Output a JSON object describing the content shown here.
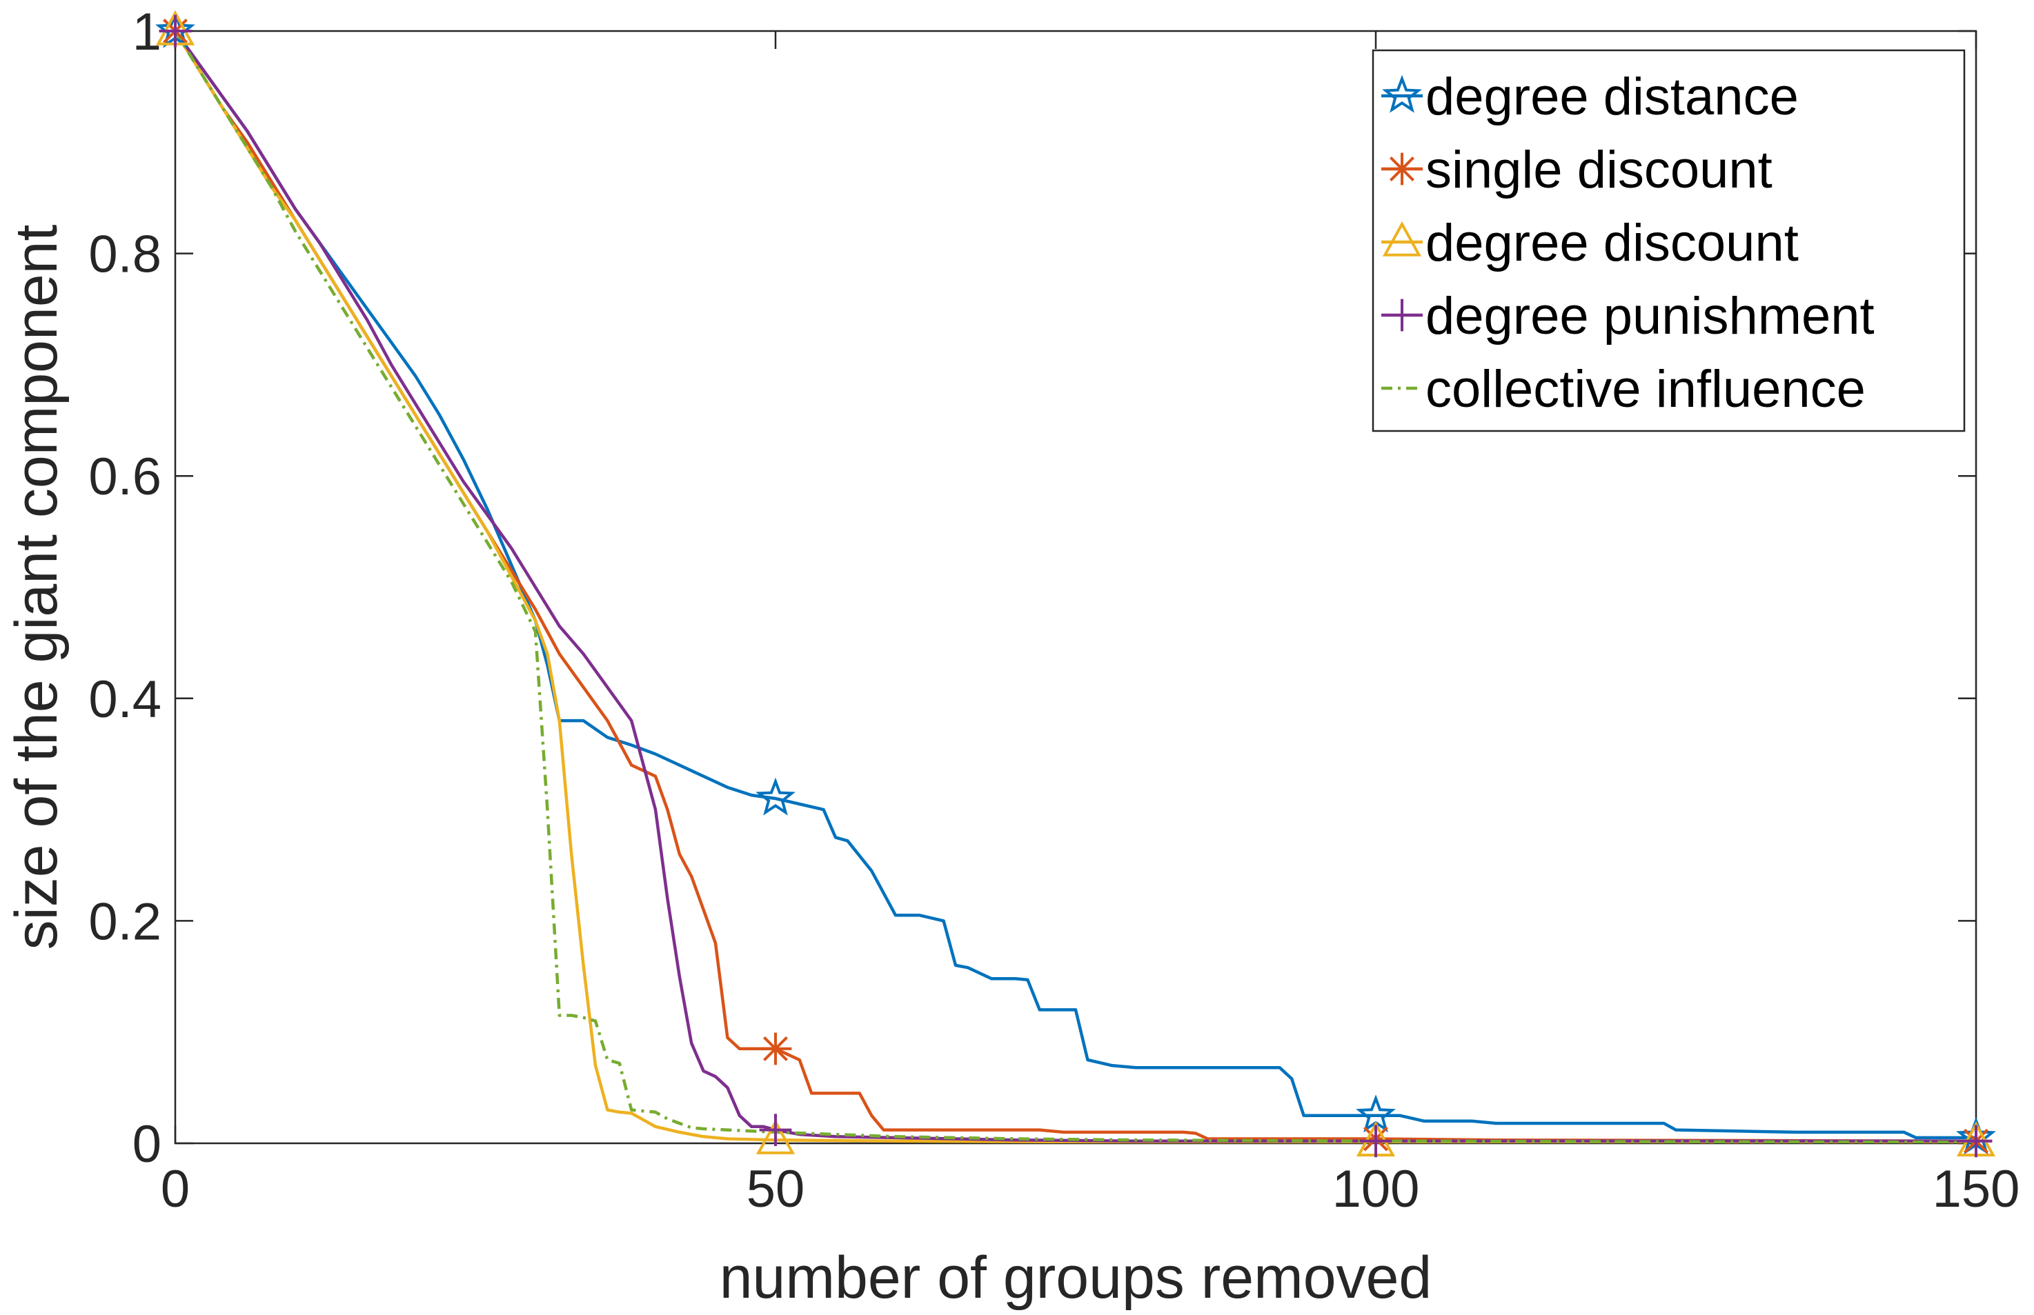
{
  "chart_data": {
    "type": "line",
    "xlabel": "number of groups removed",
    "ylabel": "size of the giant component",
    "xlim": [
      0,
      150
    ],
    "ylim": [
      0,
      1
    ],
    "xticks": [
      0,
      50,
      100,
      150
    ],
    "xtick_labels": [
      "0",
      "50",
      "100",
      "150"
    ],
    "yticks": [
      0,
      0.2,
      0.4,
      0.6,
      0.8,
      1
    ],
    "ytick_labels": [
      "0",
      "0.2",
      "0.4",
      "0.6",
      "0.8",
      "1"
    ],
    "grid": false,
    "legend_position": "top-right",
    "series": [
      {
        "name": "degree distance",
        "color": "#0072BD",
        "marker": "star",
        "line_style": "solid",
        "marker_x": [
          0,
          50,
          100,
          150
        ],
        "x": [
          0,
          2,
          4,
          6,
          8,
          10,
          12,
          14,
          16,
          18,
          20,
          22,
          24,
          26,
          28,
          30,
          31,
          32,
          34,
          36,
          38,
          40,
          42,
          44,
          46,
          48,
          50,
          52,
          54,
          55,
          56,
          58,
          60,
          62,
          64,
          65,
          66,
          68,
          70,
          71,
          72,
          74,
          75,
          76,
          78,
          80,
          82,
          84,
          86,
          88,
          90,
          92,
          93,
          94,
          96,
          98,
          100,
          102,
          104,
          106,
          108,
          110,
          115,
          120,
          124,
          125,
          130,
          135,
          140,
          144,
          145,
          150
        ],
        "y": [
          1.0,
          0.97,
          0.94,
          0.91,
          0.875,
          0.84,
          0.81,
          0.78,
          0.75,
          0.72,
          0.69,
          0.655,
          0.615,
          0.57,
          0.52,
          0.47,
          0.43,
          0.38,
          0.38,
          0.365,
          0.358,
          0.35,
          0.34,
          0.33,
          0.32,
          0.313,
          0.31,
          0.305,
          0.3,
          0.275,
          0.272,
          0.245,
          0.205,
          0.205,
          0.2,
          0.16,
          0.158,
          0.148,
          0.148,
          0.147,
          0.12,
          0.12,
          0.12,
          0.075,
          0.07,
          0.068,
          0.068,
          0.068,
          0.068,
          0.068,
          0.068,
          0.068,
          0.058,
          0.025,
          0.025,
          0.025,
          0.025,
          0.025,
          0.02,
          0.02,
          0.02,
          0.018,
          0.018,
          0.018,
          0.018,
          0.012,
          0.011,
          0.01,
          0.01,
          0.01,
          0.005,
          0.005
        ]
      },
      {
        "name": "single discount",
        "color": "#D95319",
        "marker": "asterisk",
        "line_style": "solid",
        "marker_x": [
          0,
          50,
          100,
          150
        ],
        "x": [
          0,
          2,
          4,
          6,
          8,
          10,
          12,
          14,
          16,
          18,
          20,
          22,
          24,
          26,
          28,
          30,
          31,
          32,
          34,
          36,
          38,
          40,
          41,
          42,
          43,
          44,
          45,
          46,
          47,
          48,
          49,
          50,
          52,
          53,
          54,
          56,
          57,
          58,
          59,
          60,
          62,
          64,
          66,
          68,
          70,
          72,
          74,
          76,
          78,
          80,
          82,
          84,
          85,
          86,
          90,
          100,
          110,
          150
        ],
        "y": [
          1.0,
          0.965,
          0.93,
          0.9,
          0.865,
          0.83,
          0.795,
          0.76,
          0.725,
          0.69,
          0.655,
          0.62,
          0.585,
          0.55,
          0.515,
          0.48,
          0.46,
          0.44,
          0.41,
          0.38,
          0.34,
          0.33,
          0.3,
          0.26,
          0.24,
          0.21,
          0.18,
          0.095,
          0.085,
          0.085,
          0.085,
          0.085,
          0.075,
          0.045,
          0.045,
          0.045,
          0.045,
          0.025,
          0.012,
          0.012,
          0.012,
          0.012,
          0.012,
          0.012,
          0.012,
          0.012,
          0.01,
          0.01,
          0.01,
          0.01,
          0.01,
          0.01,
          0.009,
          0.004,
          0.004,
          0.004,
          0.003,
          0.002
        ]
      },
      {
        "name": "degree discount",
        "color": "#EDB120",
        "marker": "triangle",
        "line_style": "solid",
        "marker_x": [
          0,
          50,
          100,
          150
        ],
        "x": [
          0,
          2,
          4,
          6,
          8,
          10,
          12,
          14,
          16,
          18,
          20,
          22,
          24,
          26,
          28,
          30,
          31,
          32,
          33,
          34,
          35,
          36,
          37,
          38,
          40,
          42,
          44,
          46,
          50,
          60,
          80,
          100,
          150
        ],
        "y": [
          1.0,
          0.965,
          0.93,
          0.895,
          0.86,
          0.83,
          0.795,
          0.76,
          0.725,
          0.69,
          0.655,
          0.62,
          0.585,
          0.55,
          0.51,
          0.47,
          0.44,
          0.38,
          0.26,
          0.16,
          0.07,
          0.03,
          0.028,
          0.027,
          0.015,
          0.01,
          0.006,
          0.004,
          0.003,
          0.002,
          0.001,
          0.001,
          0.001
        ]
      },
      {
        "name": "degree punishment",
        "color": "#7E2F8E",
        "marker": "plus",
        "line_style": "solid",
        "marker_x": [
          0,
          50,
          100,
          150
        ],
        "x": [
          0,
          2,
          4,
          6,
          8,
          10,
          12,
          14,
          16,
          18,
          20,
          22,
          24,
          26,
          28,
          30,
          32,
          34,
          36,
          38,
          40,
          41,
          42,
          43,
          44,
          45,
          46,
          47,
          48,
          49,
          50,
          52,
          55,
          60,
          65,
          70,
          80,
          100,
          150
        ],
        "y": [
          1.0,
          0.97,
          0.94,
          0.91,
          0.875,
          0.84,
          0.81,
          0.775,
          0.74,
          0.7,
          0.665,
          0.63,
          0.595,
          0.565,
          0.535,
          0.5,
          0.465,
          0.44,
          0.41,
          0.38,
          0.3,
          0.22,
          0.15,
          0.09,
          0.065,
          0.06,
          0.05,
          0.025,
          0.015,
          0.015,
          0.012,
          0.008,
          0.006,
          0.005,
          0.004,
          0.003,
          0.002,
          0.002,
          0.002
        ]
      },
      {
        "name": "collective influence",
        "color": "#77AC30",
        "marker": "none",
        "line_style": "dashdot",
        "marker_x": [],
        "x": [
          0,
          2,
          4,
          6,
          8,
          10,
          12,
          14,
          16,
          18,
          20,
          22,
          24,
          26,
          28,
          30,
          31,
          32,
          33,
          34,
          35,
          36,
          37,
          38,
          39,
          40,
          41,
          42,
          43,
          44,
          46,
          48,
          50,
          55,
          60,
          70,
          80,
          100,
          150
        ],
        "y": [
          1.0,
          0.965,
          0.93,
          0.895,
          0.86,
          0.82,
          0.785,
          0.75,
          0.715,
          0.68,
          0.645,
          0.61,
          0.575,
          0.54,
          0.505,
          0.46,
          0.3,
          0.115,
          0.115,
          0.113,
          0.11,
          0.075,
          0.072,
          0.03,
          0.029,
          0.028,
          0.022,
          0.018,
          0.014,
          0.013,
          0.012,
          0.011,
          0.01,
          0.008,
          0.006,
          0.004,
          0.003,
          0.002,
          0.001
        ]
      }
    ]
  }
}
